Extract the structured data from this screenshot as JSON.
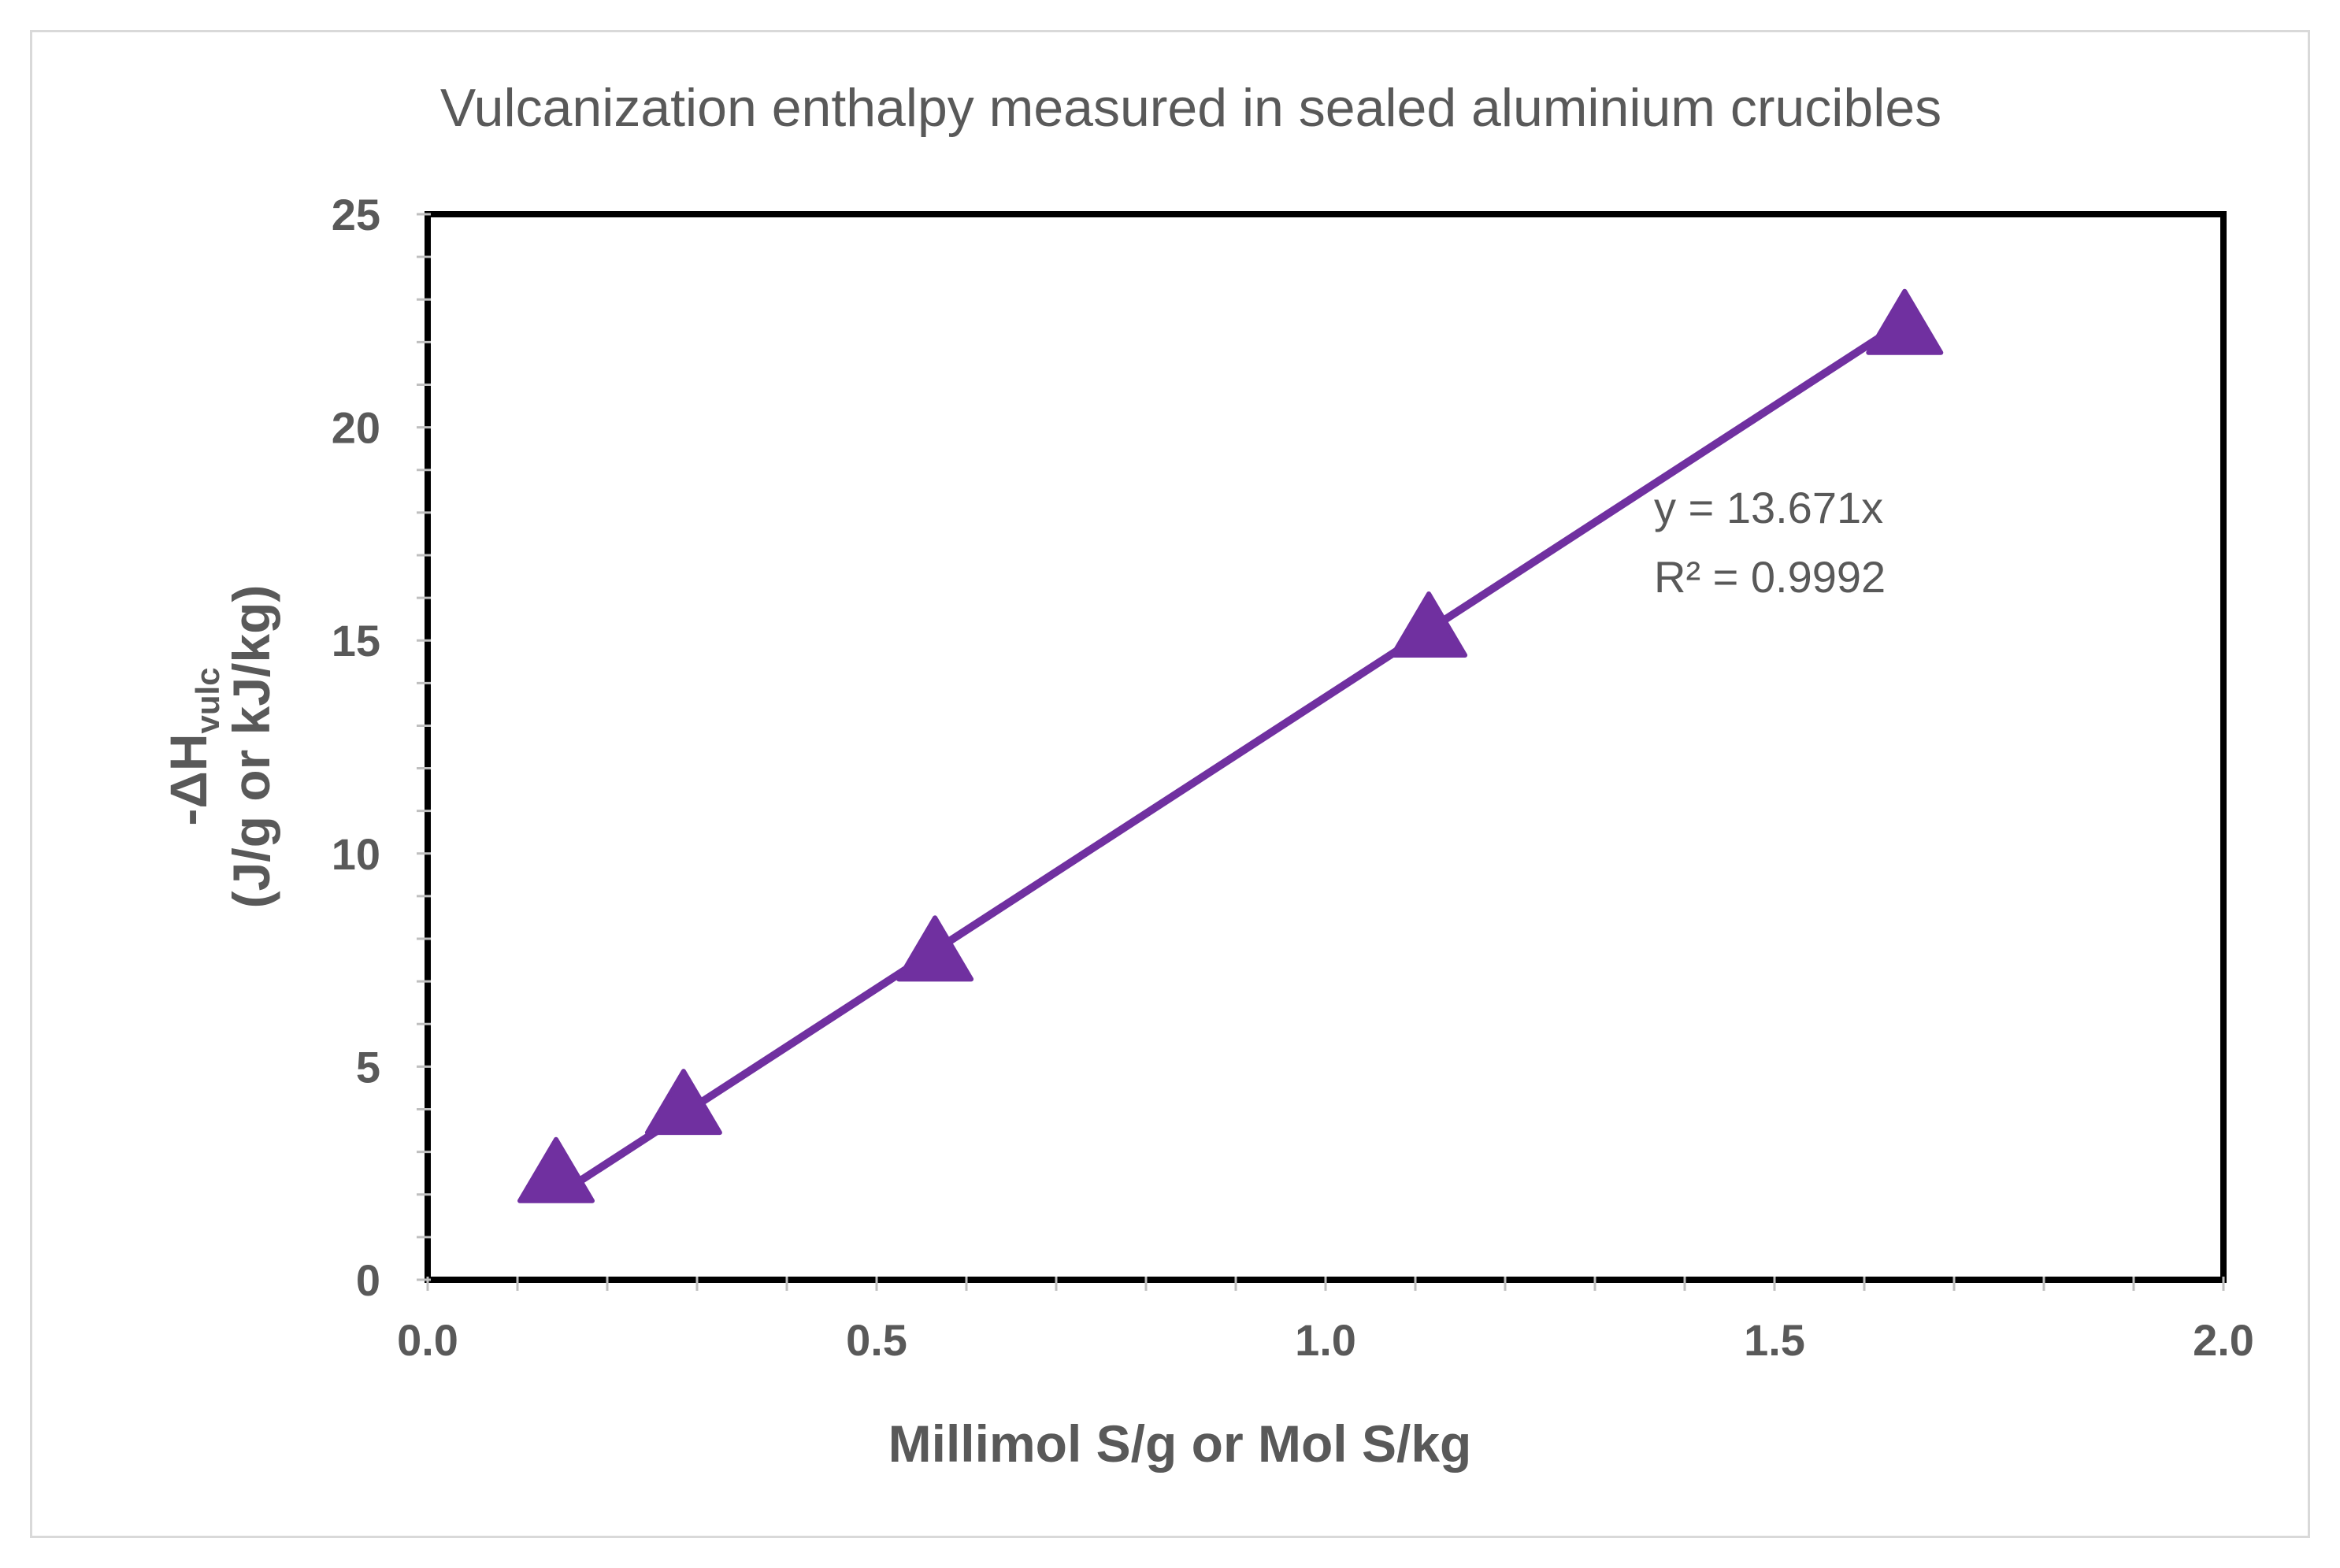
{
  "chart_data": {
    "type": "scatter",
    "title": "Vulcanization enthalpy measured in sealed aluminium crucibles",
    "xlabel": "Millimol S/g or Mol S/kg",
    "ylabel_line1_main": "-ΔH",
    "ylabel_line1_sub": "vulc",
    "ylabel_line2": "(J/g or kJ/kg)",
    "xlim": [
      0,
      2
    ],
    "ylim": [
      0,
      25
    ],
    "x_ticks": [
      0,
      0.5,
      1,
      1.5,
      2
    ],
    "x_tick_labels": [
      "0.0",
      "0.5",
      "1.0",
      "1.5",
      "2.0"
    ],
    "x_minor_step": 0.1,
    "y_ticks": [
      0,
      5,
      10,
      15,
      20,
      25
    ],
    "y_tick_labels": [
      "0",
      "5",
      "10",
      "15",
      "20",
      "25"
    ],
    "y_minor_step": 1,
    "series": [
      {
        "name": "Vulcanization enthalpy",
        "marker": "triangle",
        "color": "#7030a0",
        "x": [
          0.143,
          0.285,
          0.565,
          1.115,
          1.645
        ],
        "y": [
          2.4,
          4.0,
          7.6,
          15.2,
          22.3
        ]
      }
    ],
    "trendline": {
      "slope": 13.671,
      "x_start": 0.143,
      "x_end": 1.645,
      "equation": "y = 13.671x",
      "r_squared": "R² = 0.9992",
      "color": "#7030a0"
    }
  }
}
